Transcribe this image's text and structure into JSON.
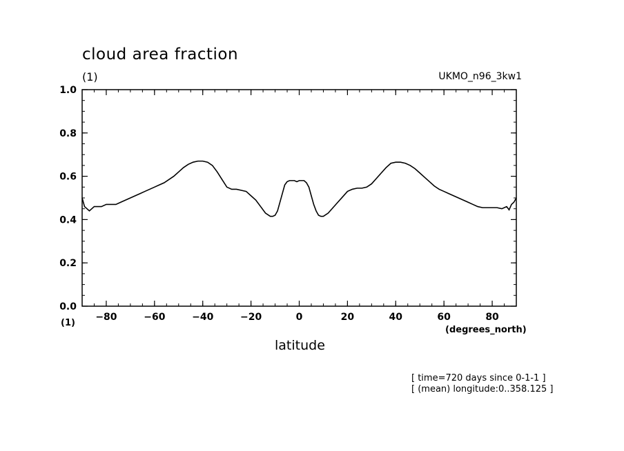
{
  "header": {
    "title": "cloud area fraction",
    "units": "(1)",
    "dataset": "UKMO_n96_3kw1"
  },
  "axes": {
    "x_units_left": "(1)",
    "x_units_right": "(degrees_north)",
    "xlabel": "latitude"
  },
  "footer": {
    "note1": "[ time=720 days since 0-1-1 ]",
    "note2": "[ (mean) longitude:0..358.125 ]"
  },
  "chart_data": {
    "type": "line",
    "xlim": [
      -90,
      90
    ],
    "ylim": [
      0.0,
      1.0
    ],
    "x_ticks": [
      -80,
      -60,
      -40,
      -20,
      0,
      20,
      40,
      60,
      80
    ],
    "x_tick_labels": [
      "-80",
      "-60",
      "-40",
      "-20",
      "0",
      "20",
      "40",
      "60",
      "80"
    ],
    "y_ticks": [
      0.0,
      0.2,
      0.4,
      0.6,
      0.8,
      1.0
    ],
    "y_tick_labels": [
      "0.0",
      "0.2",
      "0.4",
      "0.6",
      "0.8",
      "1.0"
    ],
    "grid": false,
    "series": [
      {
        "x": [
          -90,
          -89,
          -88,
          -87,
          -86,
          -85,
          -84,
          -82,
          -80,
          -78,
          -76,
          -74,
          -72,
          -70,
          -68,
          -66,
          -64,
          -62,
          -60,
          -58,
          -56,
          -54,
          -52,
          -50,
          -48,
          -46,
          -44,
          -42,
          -40,
          -38,
          -36,
          -34,
          -32,
          -30,
          -28,
          -26,
          -24,
          -22,
          -20,
          -18,
          -16,
          -14,
          -12,
          -11,
          -10,
          -9,
          -8,
          -7,
          -6,
          -5,
          -4,
          -3,
          -2,
          -1,
          0,
          1,
          2,
          3,
          4,
          5,
          6,
          7,
          8,
          9,
          10,
          12,
          14,
          16,
          18,
          20,
          22,
          24,
          26,
          28,
          30,
          32,
          34,
          36,
          38,
          40,
          42,
          44,
          46,
          48,
          50,
          52,
          54,
          56,
          58,
          60,
          62,
          64,
          66,
          68,
          70,
          72,
          74,
          76,
          78,
          80,
          82,
          84,
          85,
          86,
          87,
          88,
          89,
          90
        ],
        "y": [
          0.5,
          0.46,
          0.45,
          0.44,
          0.45,
          0.46,
          0.46,
          0.46,
          0.47,
          0.47,
          0.47,
          0.48,
          0.49,
          0.5,
          0.51,
          0.52,
          0.53,
          0.54,
          0.55,
          0.56,
          0.57,
          0.585,
          0.6,
          0.62,
          0.64,
          0.655,
          0.665,
          0.67,
          0.67,
          0.665,
          0.65,
          0.62,
          0.585,
          0.55,
          0.54,
          0.54,
          0.535,
          0.53,
          0.51,
          0.49,
          0.46,
          0.43,
          0.415,
          0.415,
          0.42,
          0.44,
          0.48,
          0.52,
          0.56,
          0.575,
          0.58,
          0.58,
          0.58,
          0.575,
          0.58,
          0.58,
          0.58,
          0.57,
          0.55,
          0.51,
          0.47,
          0.44,
          0.42,
          0.415,
          0.415,
          0.43,
          0.455,
          0.48,
          0.505,
          0.53,
          0.54,
          0.545,
          0.545,
          0.55,
          0.565,
          0.59,
          0.615,
          0.64,
          0.66,
          0.665,
          0.665,
          0.66,
          0.65,
          0.635,
          0.615,
          0.595,
          0.575,
          0.555,
          0.54,
          0.53,
          0.52,
          0.51,
          0.5,
          0.49,
          0.48,
          0.47,
          0.46,
          0.455,
          0.455,
          0.455,
          0.455,
          0.45,
          0.455,
          0.46,
          0.445,
          0.47,
          0.48,
          0.5
        ]
      }
    ]
  }
}
